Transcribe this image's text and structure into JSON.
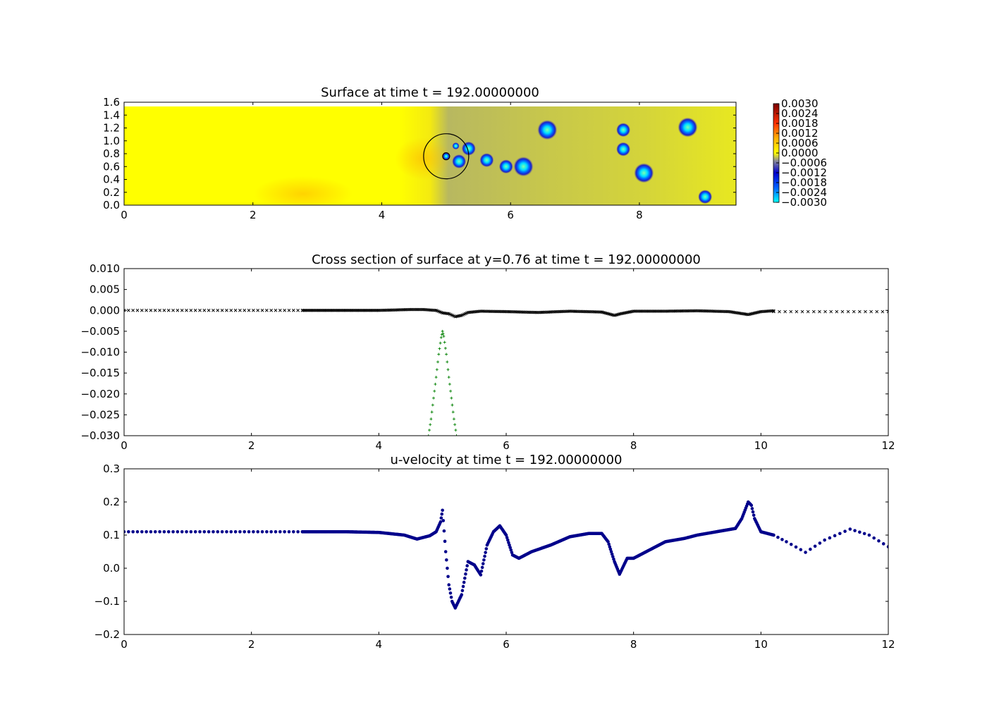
{
  "chart_data": [
    {
      "type": "heatmap",
      "title": "Surface at time t =   192.00000000",
      "xlim": [
        0,
        9.5
      ],
      "ylim": [
        0,
        1.6
      ],
      "xticks": [
        "0",
        "2",
        "4",
        "6",
        "8"
      ],
      "yticks": [
        "0.0",
        "0.2",
        "0.4",
        "0.6",
        "0.8",
        "1.0",
        "1.2",
        "1.4",
        "1.6"
      ],
      "colorbar": {
        "range": [
          -0.003,
          0.003
        ],
        "ticks": [
          "0.0030",
          "0.0024",
          "0.0018",
          "0.0012",
          "0.0006",
          "0.0000",
          "−0.0006",
          "−0.0012",
          "−0.0018",
          "−0.0024",
          "−0.0030"
        ]
      },
      "circle": {
        "cx": 5.0,
        "cy": 0.76,
        "r": 0.35
      },
      "depressions": [
        {
          "x": 5.0,
          "y": 0.76
        },
        {
          "x": 5.15,
          "y": 0.92
        },
        {
          "x": 5.2,
          "y": 0.68
        },
        {
          "x": 5.35,
          "y": 0.88
        },
        {
          "x": 5.63,
          "y": 0.7
        },
        {
          "x": 5.93,
          "y": 0.6
        },
        {
          "x": 6.2,
          "y": 0.6
        },
        {
          "x": 6.57,
          "y": 1.17
        },
        {
          "x": 7.75,
          "y": 1.17
        },
        {
          "x": 7.75,
          "y": 0.87
        },
        {
          "x": 8.07,
          "y": 0.5
        },
        {
          "x": 8.75,
          "y": 1.21
        },
        {
          "x": 9.02,
          "y": 0.13
        }
      ]
    },
    {
      "type": "scatter",
      "title": "Cross section of surface at y=0.76 at time t =   192.00000000",
      "xlim": [
        0,
        12
      ],
      "ylim": [
        -0.03,
        0.01
      ],
      "xticks": [
        "0",
        "2",
        "4",
        "6",
        "8",
        "10",
        "12"
      ],
      "yticks": [
        "0.010",
        "0.005",
        "0.000",
        "−0.005",
        "−0.010",
        "−0.015",
        "−0.020",
        "−0.025",
        "−0.030"
      ],
      "series": [
        {
          "marker": "x",
          "color": "#000000",
          "x": [
            2.8,
            3.5,
            4.0,
            4.5,
            4.7,
            4.9,
            5.0,
            5.1,
            5.2,
            5.3,
            5.4,
            5.6,
            6.0,
            6.5,
            7.0,
            7.5,
            7.7,
            7.8,
            8.0,
            8.5,
            9.0,
            9.5,
            9.8,
            10.0,
            10.2
          ],
          "y": [
            0.0,
            0.0,
            0.0,
            0.0002,
            0.0002,
            0.0,
            -0.0006,
            -0.0008,
            -0.0015,
            -0.0012,
            -0.0005,
            -0.0002,
            -0.0003,
            -0.0005,
            -0.0002,
            -0.0004,
            -0.0012,
            -0.0008,
            -0.0002,
            -0.0002,
            -0.0001,
            -0.0003,
            -0.001,
            -0.0003,
            -0.0001
          ]
        },
        {
          "marker": "+",
          "color": "#008000",
          "x": [
            4.78,
            4.82,
            4.86,
            4.9,
            4.94,
            4.98,
            5.0,
            5.02,
            5.06,
            5.1,
            5.14,
            5.18,
            5.22
          ],
          "y": [
            -0.03,
            -0.026,
            -0.021,
            -0.016,
            -0.0105,
            -0.0065,
            -0.005,
            -0.0062,
            -0.0105,
            -0.016,
            -0.021,
            -0.026,
            -0.03
          ]
        }
      ]
    },
    {
      "type": "scatter",
      "title": "u-velocity at time t =   192.00000000",
      "xlim": [
        0,
        12
      ],
      "ylim": [
        -0.2,
        0.3
      ],
      "xticks": [
        "0",
        "2",
        "4",
        "6",
        "8",
        "10",
        "12"
      ],
      "yticks": [
        "0.3",
        "0.2",
        "0.1",
        "0.0",
        "−0.1",
        "−0.2"
      ],
      "series": [
        {
          "marker": "o",
          "color": "#00008b",
          "x": [
            0.0,
            2.8,
            3.5,
            4.0,
            4.4,
            4.6,
            4.8,
            4.9,
            4.97,
            5.0,
            5.05,
            5.1,
            5.15,
            5.2,
            5.3,
            5.4,
            5.5,
            5.6,
            5.7,
            5.8,
            5.9,
            6.0,
            6.1,
            6.2,
            6.4,
            6.7,
            7.0,
            7.3,
            7.5,
            7.6,
            7.7,
            7.78,
            7.9,
            8.0,
            8.2,
            8.5,
            8.8,
            9.0,
            9.3,
            9.6,
            9.7,
            9.8,
            9.85,
            9.9,
            10.0,
            10.2,
            10.4,
            10.7,
            11.0,
            11.4,
            11.7,
            12.0
          ],
          "y": [
            0.11,
            0.11,
            0.11,
            0.108,
            0.1,
            0.088,
            0.098,
            0.11,
            0.14,
            0.175,
            0.05,
            -0.05,
            -0.1,
            -0.12,
            -0.08,
            0.02,
            0.01,
            -0.02,
            0.07,
            0.11,
            0.128,
            0.1,
            0.04,
            0.03,
            0.05,
            0.07,
            0.095,
            0.105,
            0.105,
            0.08,
            0.02,
            -0.018,
            0.03,
            0.03,
            0.05,
            0.08,
            0.09,
            0.1,
            0.11,
            0.12,
            0.15,
            0.2,
            0.19,
            0.15,
            0.11,
            0.1,
            0.08,
            0.048,
            0.085,
            0.118,
            0.1,
            0.065
          ]
        }
      ]
    }
  ]
}
